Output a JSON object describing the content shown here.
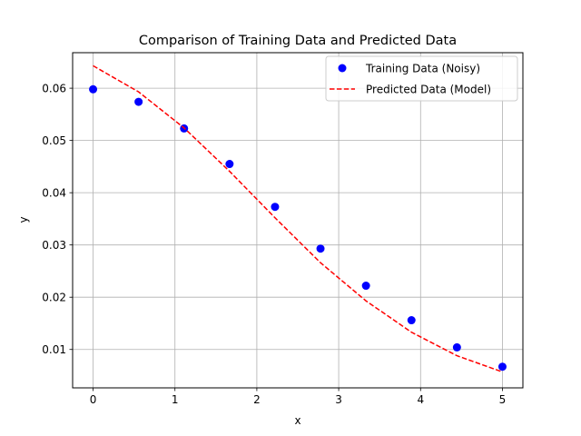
{
  "chart_data": {
    "type": "scatter",
    "title": "Comparison of Training Data and Predicted Data",
    "xlabel": "x",
    "ylabel": "y",
    "xlim": [
      -0.25,
      5.25
    ],
    "ylim": [
      0.00265,
      0.0668
    ],
    "grid": true,
    "legend_position": "top-right",
    "x_ticks": [
      0,
      1,
      2,
      3,
      4,
      5
    ],
    "x_tick_labels": [
      "0",
      "1",
      "2",
      "3",
      "4",
      "5"
    ],
    "y_ticks": [
      0.01,
      0.02,
      0.03,
      0.04,
      0.05,
      0.06
    ],
    "y_tick_labels": [
      "0.01",
      "0.02",
      "0.03",
      "0.04",
      "0.05",
      "0.06"
    ],
    "series": [
      {
        "name": "Training Data (Noisy)",
        "kind": "scatter",
        "color": "#0000ff",
        "x": [
          0,
          0.5556,
          1.1111,
          1.6667,
          2.2222,
          2.7778,
          3.3333,
          3.8889,
          4.4444,
          5.0
        ],
        "y": [
          0.0598,
          0.0574,
          0.0523,
          0.0455,
          0.0373,
          0.0293,
          0.0222,
          0.0156,
          0.0104,
          0.0067
        ]
      },
      {
        "name": "Predicted Data (Model)",
        "kind": "line",
        "style": "dashed",
        "color": "#ff0000",
        "x": [
          0,
          0.5556,
          1.1111,
          1.6667,
          2.2222,
          2.7778,
          3.3333,
          3.8889,
          4.4444,
          5.0
        ],
        "y": [
          0.0643,
          0.0593,
          0.0524,
          0.0441,
          0.0352,
          0.0266,
          0.0193,
          0.0133,
          0.0088,
          0.0057
        ]
      }
    ]
  }
}
